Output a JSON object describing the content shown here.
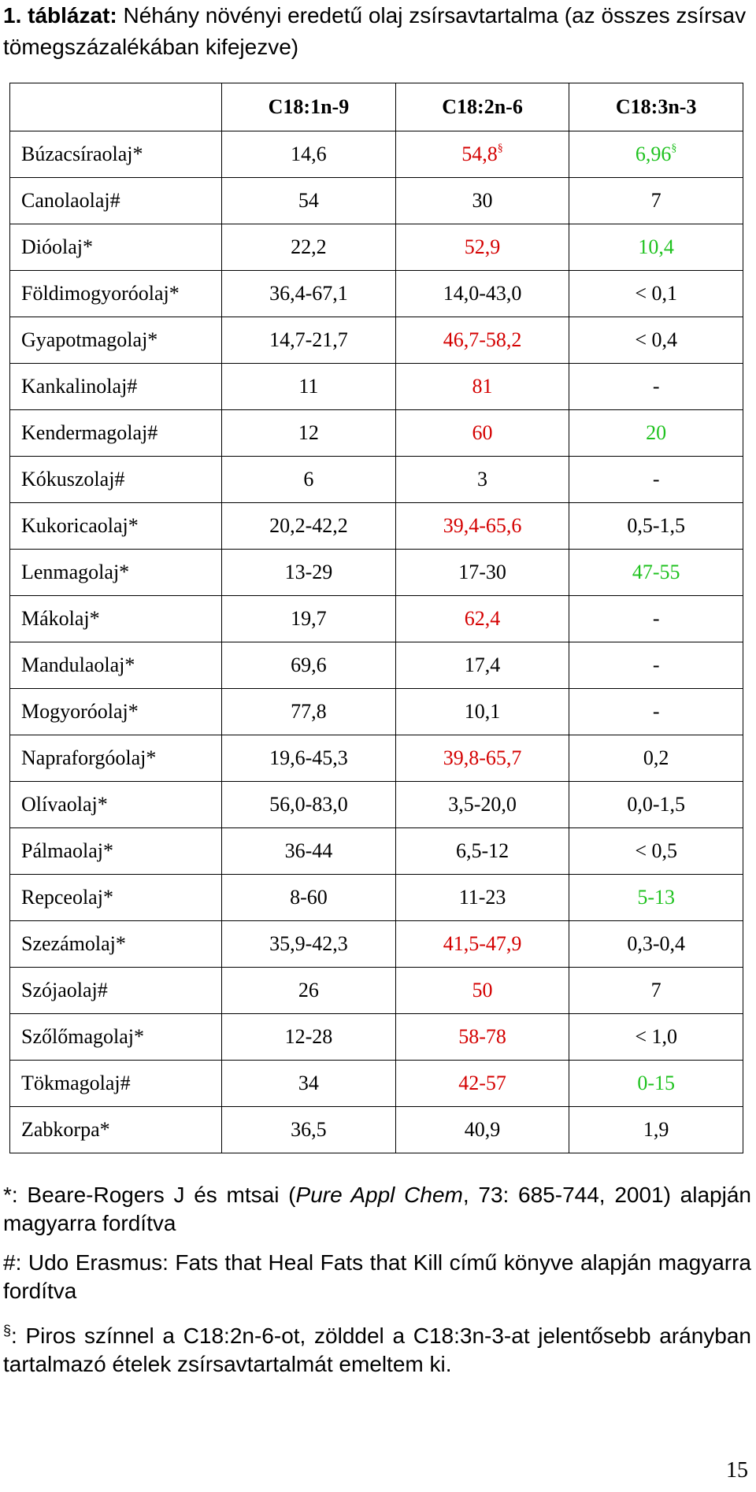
{
  "caption": {
    "number": "1.",
    "label": "táblázat:",
    "text": "Néhány növényi eredetű olaj zsírsavtartalma (az összes zsírsav tömegszázalékában kifejezve)"
  },
  "table": {
    "headers": [
      "",
      "C18:1n-9",
      "C18:2n-6",
      "C18:3n-3"
    ],
    "rows": [
      {
        "name": "Búzacsíraolaj*",
        "c18_1": "14,6",
        "c18_2": "54,8",
        "c18_3": "6,96",
        "c18_2_mark": "§",
        "c18_3_mark": "§",
        "c18_2_color": "red",
        "c18_3_color": "green"
      },
      {
        "name": "Canolaolaj#",
        "c18_1": "54",
        "c18_2": "30",
        "c18_3": "7",
        "c18_2_mark": "",
        "c18_3_mark": "",
        "c18_2_color": "",
        "c18_3_color": ""
      },
      {
        "name": "Dióolaj*",
        "c18_1": "22,2",
        "c18_2": "52,9",
        "c18_3": "10,4",
        "c18_2_mark": "",
        "c18_3_mark": "",
        "c18_2_color": "red",
        "c18_3_color": "green"
      },
      {
        "name": "Földimogyoróolaj*",
        "c18_1": "36,4-67,1",
        "c18_2": "14,0-43,0",
        "c18_3": "< 0,1",
        "c18_2_mark": "",
        "c18_3_mark": "",
        "c18_2_color": "",
        "c18_3_color": ""
      },
      {
        "name": "Gyapotmagolaj*",
        "c18_1": "14,7-21,7",
        "c18_2": "46,7-58,2",
        "c18_3": "< 0,4",
        "c18_2_mark": "",
        "c18_3_mark": "",
        "c18_2_color": "red",
        "c18_3_color": ""
      },
      {
        "name": "Kankalinolaj#",
        "c18_1": "11",
        "c18_2": "81",
        "c18_3": "-",
        "c18_2_mark": "",
        "c18_3_mark": "",
        "c18_2_color": "red",
        "c18_3_color": ""
      },
      {
        "name": "Kendermagolaj#",
        "c18_1": "12",
        "c18_2": "60",
        "c18_3": "20",
        "c18_2_mark": "",
        "c18_3_mark": "",
        "c18_2_color": "red",
        "c18_3_color": "green"
      },
      {
        "name": "Kókuszolaj#",
        "c18_1": "6",
        "c18_2": "3",
        "c18_3": "-",
        "c18_2_mark": "",
        "c18_3_mark": "",
        "c18_2_color": "",
        "c18_3_color": ""
      },
      {
        "name": "Kukoricaolaj*",
        "c18_1": "20,2-42,2",
        "c18_2": "39,4-65,6",
        "c18_3": "0,5-1,5",
        "c18_2_mark": "",
        "c18_3_mark": "",
        "c18_2_color": "red",
        "c18_3_color": ""
      },
      {
        "name": "Lenmagolaj*",
        "c18_1": "13-29",
        "c18_2": "17-30",
        "c18_3": "47-55",
        "c18_2_mark": "",
        "c18_3_mark": "",
        "c18_2_color": "",
        "c18_3_color": "green"
      },
      {
        "name": "Mákolaj*",
        "c18_1": "19,7",
        "c18_2": "62,4",
        "c18_3": "-",
        "c18_2_mark": "",
        "c18_3_mark": "",
        "c18_2_color": "red",
        "c18_3_color": ""
      },
      {
        "name": "Mandulaolaj*",
        "c18_1": "69,6",
        "c18_2": "17,4",
        "c18_3": "-",
        "c18_2_mark": "",
        "c18_3_mark": "",
        "c18_2_color": "",
        "c18_3_color": ""
      },
      {
        "name": "Mogyoróolaj*",
        "c18_1": "77,8",
        "c18_2": "10,1",
        "c18_3": "-",
        "c18_2_mark": "",
        "c18_3_mark": "",
        "c18_2_color": "",
        "c18_3_color": ""
      },
      {
        "name": "Napraforgóolaj*",
        "c18_1": "19,6-45,3",
        "c18_2": "39,8-65,7",
        "c18_3": "0,2",
        "c18_2_mark": "",
        "c18_3_mark": "",
        "c18_2_color": "red",
        "c18_3_color": ""
      },
      {
        "name": "Olívaolaj*",
        "c18_1": "56,0-83,0",
        "c18_2": "3,5-20,0",
        "c18_3": "0,0-1,5",
        "c18_2_mark": "",
        "c18_3_mark": "",
        "c18_2_color": "",
        "c18_3_color": ""
      },
      {
        "name": "Pálmaolaj*",
        "c18_1": "36-44",
        "c18_2": "6,5-12",
        "c18_3": "< 0,5",
        "c18_2_mark": "",
        "c18_3_mark": "",
        "c18_2_color": "",
        "c18_3_color": ""
      },
      {
        "name": "Repceolaj*",
        "c18_1": "8-60",
        "c18_2": "11-23",
        "c18_3": "5-13",
        "c18_2_mark": "",
        "c18_3_mark": "",
        "c18_2_color": "",
        "c18_3_color": "green"
      },
      {
        "name": "Szezámolaj*",
        "c18_1": "35,9-42,3",
        "c18_2": "41,5-47,9",
        "c18_3": "0,3-0,4",
        "c18_2_mark": "",
        "c18_3_mark": "",
        "c18_2_color": "red",
        "c18_3_color": ""
      },
      {
        "name": "Szójaolaj#",
        "c18_1": "26",
        "c18_2": "50",
        "c18_3": "7",
        "c18_2_mark": "",
        "c18_3_mark": "",
        "c18_2_color": "red",
        "c18_3_color": ""
      },
      {
        "name": "Szőlőmagolaj*",
        "c18_1": "12-28",
        "c18_2": "58-78",
        "c18_3": "< 1,0",
        "c18_2_mark": "",
        "c18_3_mark": "",
        "c18_2_color": "red",
        "c18_3_color": ""
      },
      {
        "name": "Tökmagolaj#",
        "c18_1": "34",
        "c18_2": "42-57",
        "c18_3": "0-15",
        "c18_2_mark": "",
        "c18_3_mark": "",
        "c18_2_color": "red",
        "c18_3_color": "green"
      },
      {
        "name": "Zabkorpa*",
        "c18_1": "36,5",
        "c18_2": "40,9",
        "c18_3": "1,9",
        "c18_2_mark": "",
        "c18_3_mark": "",
        "c18_2_color": "",
        "c18_3_color": ""
      }
    ]
  },
  "notes": {
    "star_symbol": "*",
    "star_text_before": ": Beare-Rogers J és mtsai (",
    "star_journal": "Pure Appl Chem",
    "star_text_after": ", 73: 685-744, 2001) alapján magyarra fordítva",
    "hash_symbol": "#",
    "hash_text": ": Udo Erasmus: Fats that Heal Fats that Kill című könyve alapján magyarra fordítva",
    "section_symbol": "§",
    "section_text": ": Piros színnel a C18:2n-6-ot, zölddel a C18:3n-3-at jelentősebb arányban tartalmazó ételek zsírsavtartalmát emeltem ki."
  },
  "page_number": "15",
  "colors": {
    "red": "#d40000",
    "green": "#1fc21f"
  }
}
